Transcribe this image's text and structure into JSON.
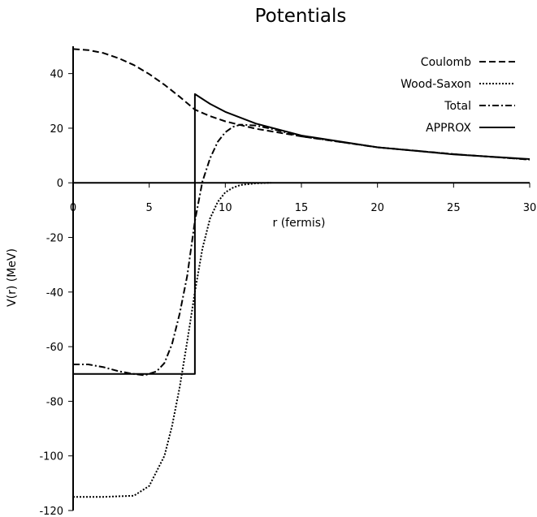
{
  "chart_data": {
    "type": "line",
    "title": "Potentials",
    "xlabel": "r (fermis)",
    "ylabel": "V(r) (MeV)",
    "xlim": [
      0,
      30
    ],
    "ylim": [
      -120,
      50
    ],
    "xticks": [
      0,
      5,
      10,
      15,
      20,
      25,
      30
    ],
    "yticks": [
      -120,
      -100,
      -80,
      -60,
      -40,
      -20,
      0,
      20,
      40
    ],
    "legend_position": "top-right",
    "grid": false,
    "series": [
      {
        "name": "Coulomb",
        "style": "dashed",
        "x": [
          0,
          1,
          2,
          3,
          4,
          5,
          6,
          7,
          8,
          9,
          10,
          12,
          15,
          20,
          25,
          30
        ],
        "y": [
          49,
          48.6,
          47.5,
          45.6,
          43.1,
          39.8,
          35.9,
          31.5,
          26.8,
          24.4,
          22.5,
          19.8,
          17.0,
          13.0,
          10.5,
          8.5
        ]
      },
      {
        "name": "Wood-Saxon",
        "style": "dotted",
        "x": [
          0,
          2,
          4,
          5,
          6,
          6.5,
          7,
          7.5,
          8,
          8.5,
          9,
          9.5,
          10,
          10.5,
          11,
          12,
          13
        ],
        "y": [
          -115,
          -115,
          -114.6,
          -111,
          -100,
          -89,
          -75,
          -58,
          -40,
          -24,
          -13,
          -7,
          -3.5,
          -1.8,
          -0.8,
          -0.2,
          0
        ]
      },
      {
        "name": "Total",
        "style": "dashdot",
        "x": [
          0,
          1,
          2,
          3,
          4,
          4.7,
          5.5,
          6,
          6.5,
          7,
          7.5,
          8,
          8.5,
          9,
          9.5,
          10,
          10.5,
          11,
          12,
          13,
          15,
          20,
          25,
          30
        ],
        "y": [
          -66.5,
          -66.5,
          -67.5,
          -69,
          -70,
          -70.5,
          -69,
          -66,
          -59,
          -48,
          -34,
          -14,
          0.5,
          9,
          15,
          18.5,
          20.5,
          21.3,
          21,
          19.8,
          17,
          13,
          10.5,
          8.5
        ]
      },
      {
        "name": "APPROX",
        "style": "solid",
        "x": [
          0,
          8,
          8,
          9,
          10,
          12,
          15,
          20,
          25,
          30
        ],
        "y": [
          -70,
          -70,
          32.5,
          28.9,
          26.0,
          21.7,
          17.3,
          13.0,
          10.4,
          8.7
        ]
      }
    ]
  }
}
